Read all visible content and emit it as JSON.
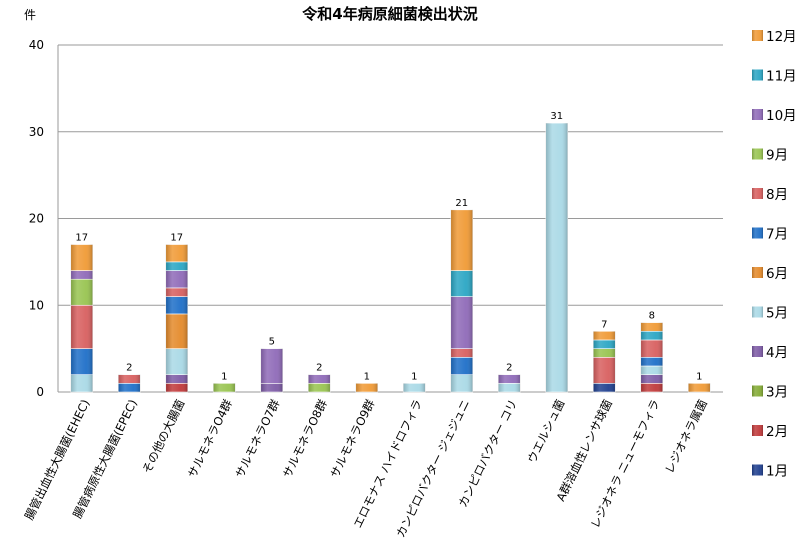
{
  "chart_data": {
    "type": "bar",
    "stacked": true,
    "title": "令和4年病原細菌検出状況",
    "ylabel": "件",
    "xlabel": "",
    "ylim": [
      0,
      40
    ],
    "yticks": [
      0,
      10,
      20,
      30,
      40
    ],
    "grid": true,
    "legend_position": "right",
    "categories": [
      "腸管出血性大腸菌(EHEC)",
      "腸管病原性大腸菌(EPEC)",
      "その他の大腸菌",
      "サルモネラO4群",
      "サルモネラO7群",
      "サルモネラO8群",
      "サルモネラO9群",
      "エロモナス ハイドロフィラ",
      "カンピロバクター ジェジュニ",
      "カンピロバクター コリ",
      "ウエルシュ菌",
      "A群溶血性レンサ球菌",
      "レジオネラ ニューモフィラ",
      "レジオネラ属菌"
    ],
    "totals": [
      17,
      2,
      17,
      1,
      5,
      2,
      1,
      1,
      21,
      2,
      31,
      7,
      8,
      1
    ],
    "series": [
      {
        "name": "1月",
        "color": "#1f3f8f",
        "values": [
          0,
          0,
          0,
          0,
          0,
          0,
          0,
          0,
          0,
          0,
          0,
          1,
          0,
          0
        ]
      },
      {
        "name": "2月",
        "color": "#c0393a",
        "values": [
          0,
          0,
          1,
          0,
          0,
          0,
          0,
          0,
          0,
          0,
          0,
          0,
          1,
          0
        ]
      },
      {
        "name": "3月",
        "color": "#84ab35",
        "values": [
          0,
          0,
          0,
          0,
          0,
          0,
          0,
          0,
          0,
          0,
          0,
          0,
          0,
          0
        ]
      },
      {
        "name": "4月",
        "color": "#7d5ba6",
        "values": [
          0,
          0,
          1,
          0,
          1,
          0,
          0,
          0,
          0,
          0,
          0,
          0,
          1,
          0
        ]
      },
      {
        "name": "5月",
        "color": "#a9d9e6",
        "values": [
          2,
          0,
          3,
          0,
          0,
          0,
          0,
          1,
          2,
          1,
          31,
          0,
          1,
          0
        ]
      },
      {
        "name": "6月",
        "color": "#e48a2a",
        "values": [
          0,
          0,
          4,
          0,
          0,
          0,
          0,
          0,
          0,
          0,
          0,
          0,
          0,
          0
        ]
      },
      {
        "name": "7月",
        "color": "#1e6fc8",
        "values": [
          3,
          1,
          2,
          0,
          0,
          0,
          0,
          0,
          2,
          0,
          0,
          0,
          1,
          0
        ]
      },
      {
        "name": "8月",
        "color": "#d85f5f",
        "values": [
          5,
          1,
          1,
          0,
          0,
          0,
          0,
          0,
          1,
          0,
          0,
          3,
          2,
          0
        ]
      },
      {
        "name": "9月",
        "color": "#98c450",
        "values": [
          3,
          0,
          0,
          1,
          0,
          1,
          0,
          0,
          0,
          0,
          0,
          1,
          0,
          0
        ]
      },
      {
        "name": "10月",
        "color": "#8f6ab8",
        "values": [
          1,
          0,
          2,
          0,
          4,
          1,
          0,
          0,
          6,
          1,
          0,
          0,
          0,
          0
        ]
      },
      {
        "name": "11月",
        "color": "#2aa6c4",
        "values": [
          0,
          0,
          1,
          0,
          0,
          0,
          0,
          0,
          3,
          0,
          0,
          1,
          1,
          0
        ]
      },
      {
        "name": "12月",
        "color": "#f09a35",
        "values": [
          3,
          0,
          2,
          0,
          0,
          0,
          1,
          0,
          7,
          0,
          0,
          1,
          1,
          1
        ]
      }
    ]
  }
}
